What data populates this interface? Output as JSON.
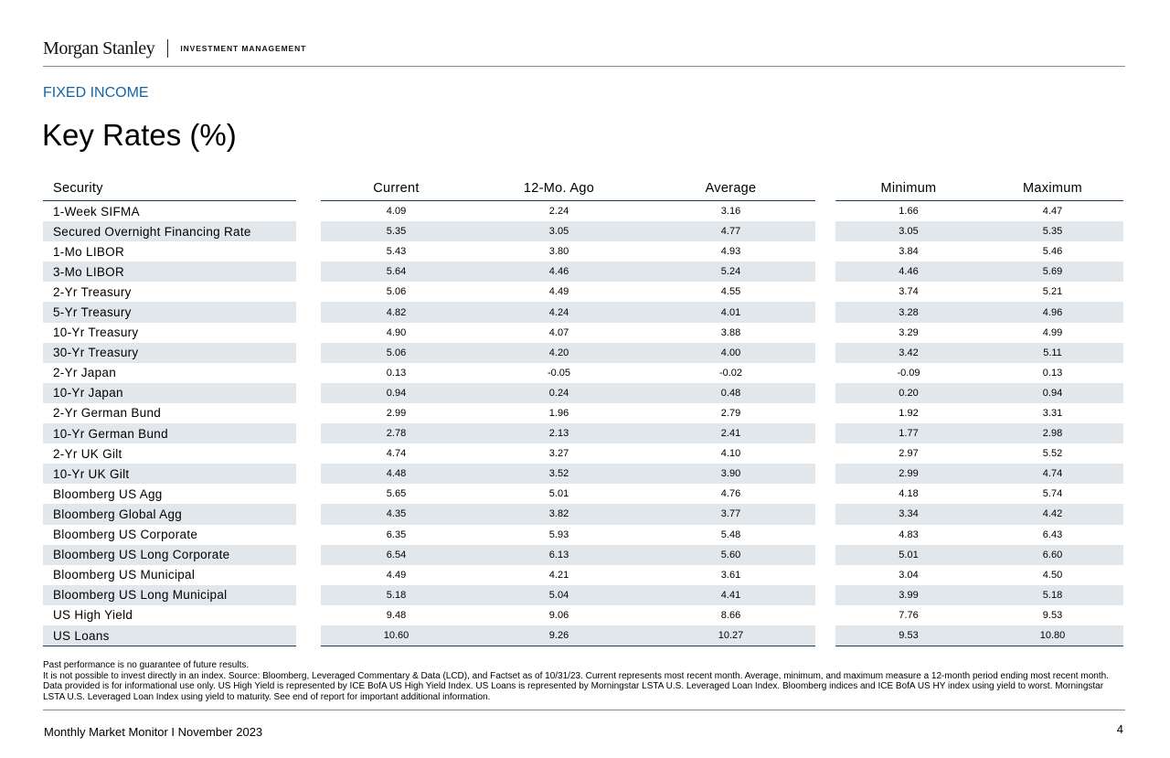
{
  "header": {
    "brand": "Morgan Stanley",
    "division": "INVESTMENT MANAGEMENT"
  },
  "section": "FIXED INCOME",
  "title": "Key Rates (%)",
  "table": {
    "columns": {
      "security": "Security",
      "current": "Current",
      "ago": "12-Mo. Ago",
      "average": "Average",
      "minimum": "Minimum",
      "maximum": "Maximum"
    },
    "rows": [
      [
        "1-Week SIFMA",
        "4.09",
        "2.24",
        "3.16",
        "1.66",
        "4.47"
      ],
      [
        "Secured Overnight Financing Rate",
        "5.35",
        "3.05",
        "4.77",
        "3.05",
        "5.35"
      ],
      [
        "1-Mo LIBOR",
        "5.43",
        "3.80",
        "4.93",
        "3.84",
        "5.46"
      ],
      [
        "3-Mo LIBOR",
        "5.64",
        "4.46",
        "5.24",
        "4.46",
        "5.69"
      ],
      [
        "2-Yr Treasury",
        "5.06",
        "4.49",
        "4.55",
        "3.74",
        "5.21"
      ],
      [
        "5-Yr Treasury",
        "4.82",
        "4.24",
        "4.01",
        "3.28",
        "4.96"
      ],
      [
        "10-Yr Treasury",
        "4.90",
        "4.07",
        "3.88",
        "3.29",
        "4.99"
      ],
      [
        "30-Yr Treasury",
        "5.06",
        "4.20",
        "4.00",
        "3.42",
        "5.11"
      ],
      [
        "2-Yr Japan",
        "0.13",
        "-0.05",
        "-0.02",
        "-0.09",
        "0.13"
      ],
      [
        "10-Yr Japan",
        "0.94",
        "0.24",
        "0.48",
        "0.20",
        "0.94"
      ],
      [
        "2-Yr German Bund",
        "2.99",
        "1.96",
        "2.79",
        "1.92",
        "3.31"
      ],
      [
        "10-Yr German Bund",
        "2.78",
        "2.13",
        "2.41",
        "1.77",
        "2.98"
      ],
      [
        "2-Yr UK Gilt",
        "4.74",
        "3.27",
        "4.10",
        "2.97",
        "5.52"
      ],
      [
        "10-Yr UK Gilt",
        "4.48",
        "3.52",
        "3.90",
        "2.99",
        "4.74"
      ],
      [
        "Bloomberg US Agg",
        "5.65",
        "5.01",
        "4.76",
        "4.18",
        "5.74"
      ],
      [
        "Bloomberg Global Agg",
        "4.35",
        "3.82",
        "3.77",
        "3.34",
        "4.42"
      ],
      [
        "Bloomberg US Corporate",
        "6.35",
        "5.93",
        "5.48",
        "4.83",
        "6.43"
      ],
      [
        "Bloomberg US Long Corporate",
        "6.54",
        "6.13",
        "5.60",
        "5.01",
        "6.60"
      ],
      [
        "Bloomberg US Municipal",
        "4.49",
        "4.21",
        "3.61",
        "3.04",
        "4.50"
      ],
      [
        "Bloomberg US Long Municipal",
        "5.18",
        "5.04",
        "4.41",
        "3.99",
        "5.18"
      ],
      [
        "US High Yield",
        "9.48",
        "9.06",
        "8.66",
        "7.76",
        "9.53"
      ],
      [
        "US Loans",
        "10.60",
        "9.26",
        "10.27",
        "9.53",
        "10.80"
      ]
    ]
  },
  "notes": {
    "line1": "Past performance is no guarantee of future results.",
    "line2": "It is not possible to invest directly in an index. Source: Bloomberg, Leveraged Commentary & Data (LCD), and Factset as of 10/31/23. Current represents most recent month. Average, minimum, and maximum measure a 12-month period ending most recent month. Data provided is for informational use only. US High Yield is represented by ICE BofA US High Yield Index. US Loans is represented by Morningstar LSTA U.S. Leveraged Loan Index. Bloomberg indices and ICE BofA US HY index using yield to worst. Morningstar LSTA U.S. Leveraged Loan Index using yield to maturity. See end of report for important additional information."
  },
  "footer": {
    "text": "Monthly Market Monitor I November 2023",
    "page": "4"
  }
}
